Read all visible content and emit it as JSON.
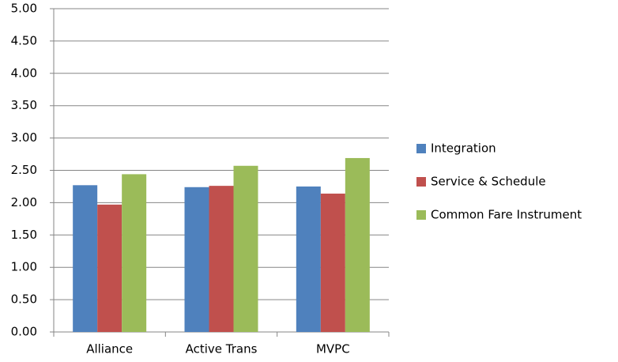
{
  "chart_data": {
    "type": "bar",
    "categories": [
      "Alliance",
      "Active Trans",
      "MVPC"
    ],
    "series": [
      {
        "name": "Integration",
        "color": "#4f81bd",
        "values": [
          2.27,
          2.24,
          2.25
        ]
      },
      {
        "name": "Service & Schedule",
        "color": "#c0504d",
        "values": [
          1.97,
          2.26,
          2.14
        ]
      },
      {
        "name": "Common Fare Instrument",
        "color": "#9bbb59",
        "values": [
          2.44,
          2.57,
          2.69
        ]
      }
    ],
    "ylim": [
      0,
      5
    ],
    "yticks": [
      {
        "value": 0,
        "label": "0.00"
      },
      {
        "value": 0.5,
        "label": "0.50"
      },
      {
        "value": 1,
        "label": "1.00"
      },
      {
        "value": 1.5,
        "label": "1.50"
      },
      {
        "value": 2,
        "label": "2.00"
      },
      {
        "value": 2.5,
        "label": "2.50"
      },
      {
        "value": 3,
        "label": "3.00"
      },
      {
        "value": 3.5,
        "label": "3.50"
      },
      {
        "value": 4,
        "label": "4.00"
      },
      {
        "value": 4.5,
        "label": "4.50"
      },
      {
        "value": 5,
        "label": "5.00"
      }
    ],
    "grid": true,
    "legend": "right"
  }
}
